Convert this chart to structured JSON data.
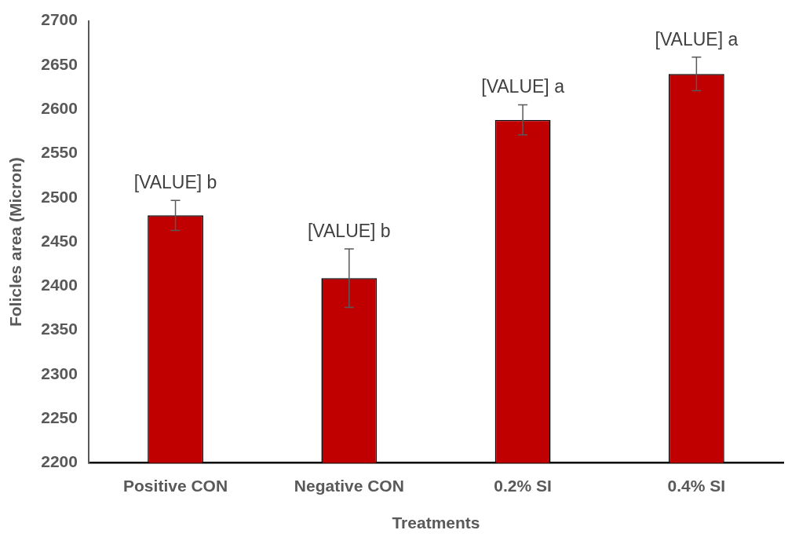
{
  "chart_data": {
    "type": "bar",
    "xlabel": "Treatments",
    "ylabel": "Folicles area (Micron)",
    "categories": [
      "Positive CON",
      "Negative CON",
      "0.2% SI",
      "0.4% SI"
    ],
    "values": [
      2480,
      2409,
      2588,
      2640
    ],
    "errors": [
      17,
      33,
      17,
      19
    ],
    "value_labels": [
      "[VALUE] b",
      "[VALUE] b",
      "[VALUE] a",
      "[VALUE] a"
    ],
    "color": "#c00000",
    "ylim": [
      2200,
      2700
    ],
    "yticks": [
      2200,
      2250,
      2300,
      2350,
      2400,
      2450,
      2500,
      2550,
      2600,
      2650,
      2700
    ],
    "grid": false,
    "legend": false
  }
}
